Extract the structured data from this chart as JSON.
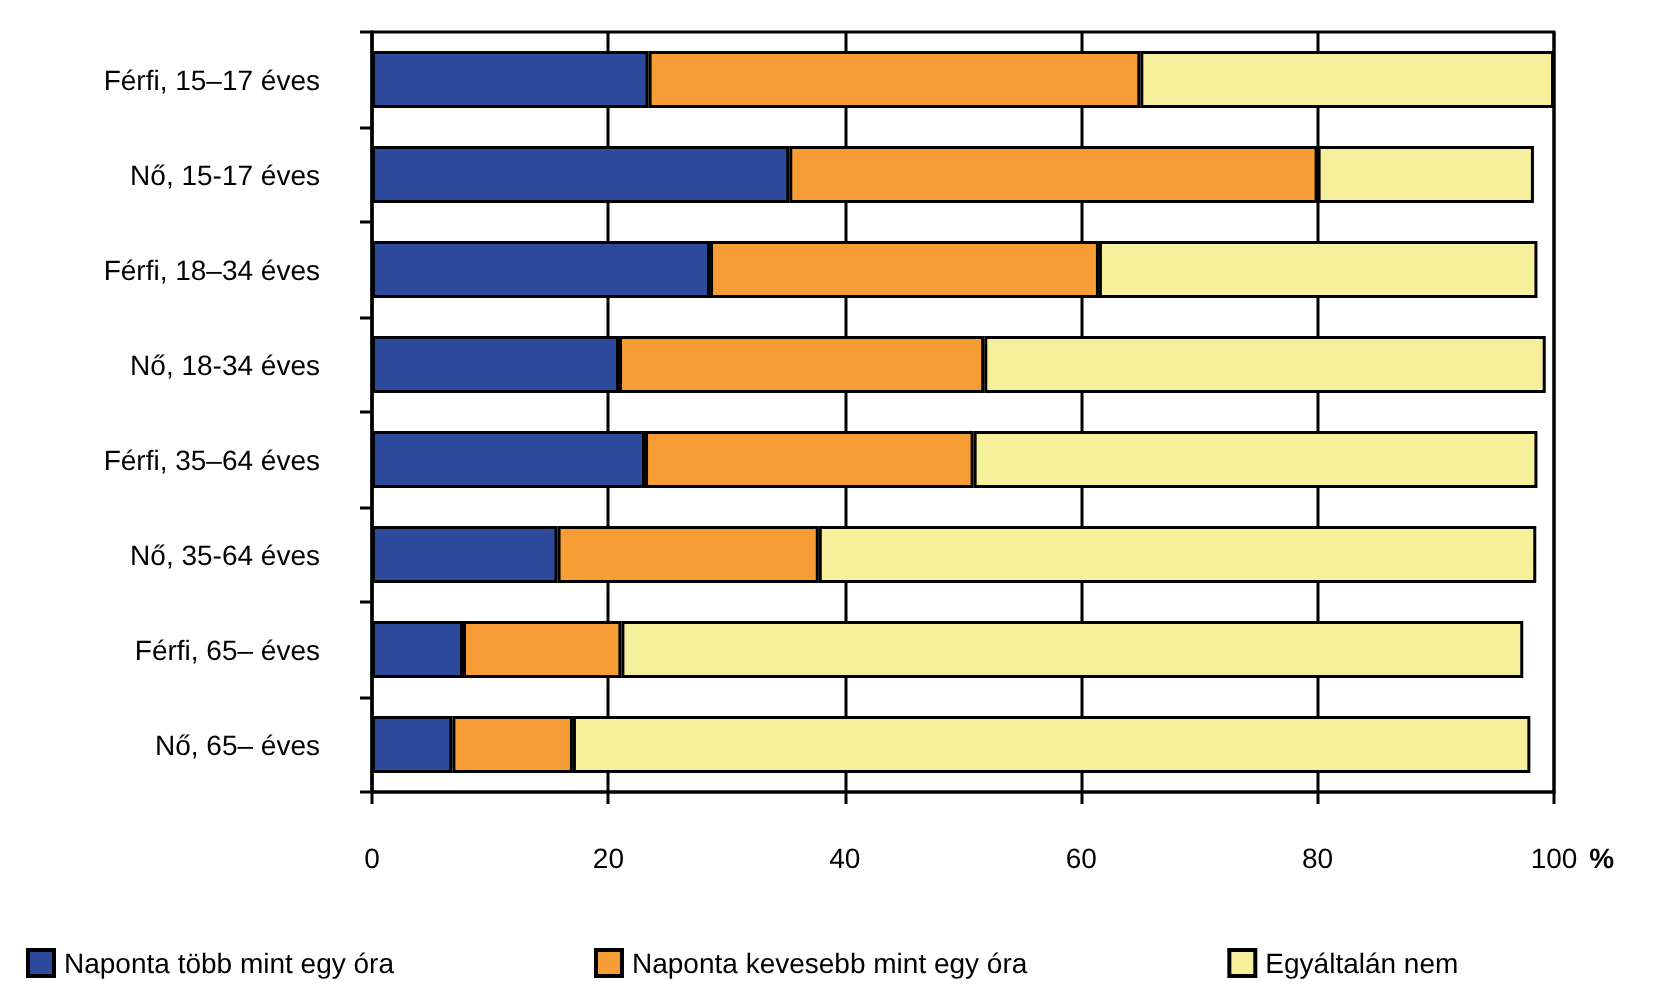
{
  "chart_data": {
    "type": "bar",
    "orientation": "horizontal",
    "stacked": true,
    "xlabel": "%",
    "categories": [
      "Férfi, 15–17 éves",
      "Nő, 15-17 éves",
      "Férfi, 18–34 éves",
      "Nő, 18-34 éves",
      "Férfi, 35–64 éves",
      "Nő, 35-64 éves",
      "Férfi, 65– éves",
      "Nő, 65– éves"
    ],
    "series": [
      {
        "name": "Naponta több mint egy óra",
        "color": "#2e4a9c",
        "values": [
          23.4,
          35.3,
          28.6,
          20.9,
          23.1,
          15.7,
          7.7,
          6.8
        ]
      },
      {
        "name": "Naponta kevesebb mint egy óra",
        "color": "#f79d36",
        "values": [
          41.6,
          44.7,
          32.9,
          30.9,
          27.8,
          22.1,
          13.4,
          10.2
        ]
      },
      {
        "name": "Egyáltalán nem",
        "color": "#f6f09c",
        "values": [
          35.0,
          18.3,
          37.1,
          47.5,
          47.7,
          60.7,
          76.3,
          81.0
        ]
      }
    ],
    "xlim": [
      0,
      100
    ],
    "xticks": [
      0,
      20,
      40,
      60,
      80,
      100
    ],
    "grid": "x",
    "legend": "bottom"
  }
}
